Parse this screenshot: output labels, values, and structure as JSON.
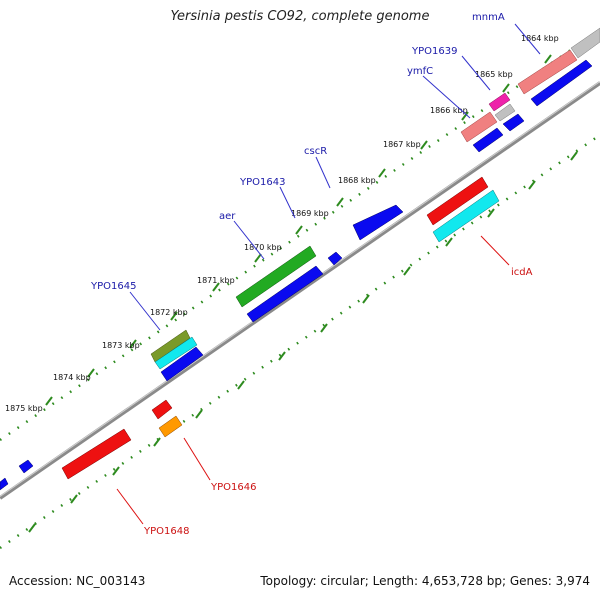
{
  "title": "Yersinia pestis CO92, complete genome",
  "accession_text": "Accession: NC_003143",
  "topology_text": "Topology: circular; Length: 4,653,728 bp; Genes: 3,974",
  "colors": {
    "backbone": "#8a8a8a",
    "tick": "#2e8b1f",
    "upper_label": "#1a1aa8",
    "lower_label": "#cc1111"
  },
  "ticks": [
    {
      "label": "1864 kbp"
    },
    {
      "label": "1865 kbp"
    },
    {
      "label": "1866 kbp"
    },
    {
      "label": "1867 kbp"
    },
    {
      "label": "1868 kbp"
    },
    {
      "label": "1869 kbp"
    },
    {
      "label": "1870 kbp"
    },
    {
      "label": "1871 kbp"
    },
    {
      "label": "1872 kbp"
    },
    {
      "label": "1873 kbp"
    },
    {
      "label": "1874 kbp"
    },
    {
      "label": "1875 kbp"
    }
  ],
  "gene_labels": [
    {
      "text": "mnmA",
      "strand": "plus"
    },
    {
      "text": "YPO1639",
      "strand": "plus"
    },
    {
      "text": "ymfC",
      "strand": "plus"
    },
    {
      "text": "cscR",
      "strand": "plus"
    },
    {
      "text": "YPO1643",
      "strand": "plus"
    },
    {
      "text": "aer",
      "strand": "plus"
    },
    {
      "text": "YPO1645",
      "strand": "plus"
    },
    {
      "text": "icdA",
      "strand": "minus"
    },
    {
      "text": "YPO1646",
      "strand": "minus"
    },
    {
      "text": "YPO1648",
      "strand": "minus"
    }
  ],
  "feature_colors": {
    "cds_plus": "#0a0af0",
    "pink": "#f08080",
    "grey": "#c0c0c0",
    "magenta": "#ee22aa",
    "green": "#22aa22",
    "olive": "#7a9a2a",
    "cyan": "#11e8ee",
    "red": "#ee1111",
    "orange": "#ff9900"
  }
}
